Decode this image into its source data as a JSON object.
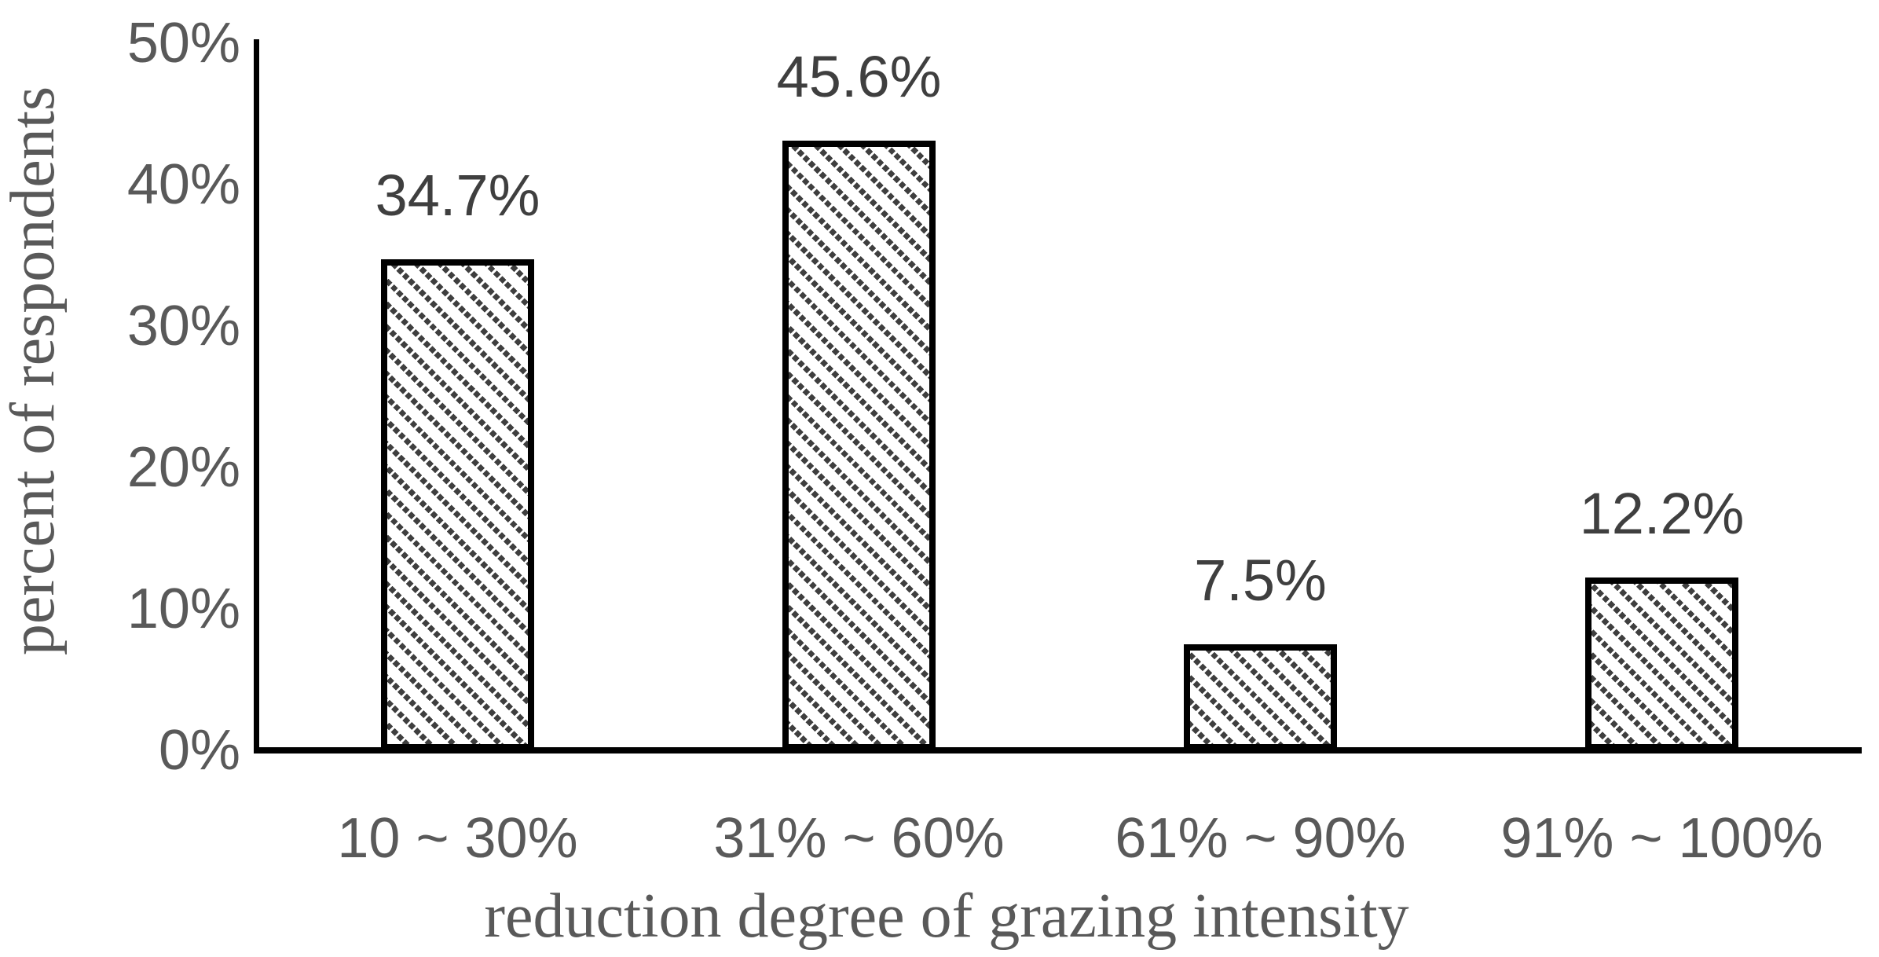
{
  "chart_data": {
    "type": "bar",
    "title": "",
    "categories": [
      "10 ~ 30%",
      "31% ~ 60%",
      "61% ~ 90%",
      "91% ~ 100%"
    ],
    "values": [
      34.7,
      45.6,
      7.5,
      12.2
    ],
    "data_labels": [
      "34.7%",
      "45.6%",
      "7.5%",
      "12.2%"
    ],
    "xlabel": "reduction degree of grazing intensity",
    "ylabel": "percent of respondents",
    "yticks": [
      "0%",
      "10%",
      "20%",
      "30%",
      "40%",
      "50%"
    ],
    "ylim": [
      0,
      50
    ],
    "grid": false,
    "legend": false,
    "bar_style": {
      "fill": "#ffffff",
      "hatch": "dotted-diagonal-stripe-45deg",
      "hatch_color": "#3f3f3f",
      "border_color": "#000000"
    },
    "colors": {
      "axis_line": "#000000",
      "axis_text": "#595959",
      "data_label_text": "#3f3f3f",
      "background": "#ffffff"
    }
  }
}
